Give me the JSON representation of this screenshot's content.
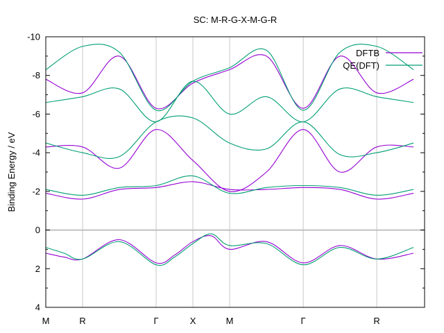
{
  "chart_data": {
    "type": "line",
    "title": "SC: M-R-G-X-M-G-R",
    "ylabel": "Binding Energy / eV",
    "xlabel": "",
    "xlim": [
      0,
      5.15
    ],
    "ylim": [
      4,
      -10
    ],
    "y_inverted": true,
    "grid": true,
    "x_ticks": [
      {
        "pos": 0,
        "label": "M"
      },
      {
        "pos": 0.5,
        "label": "R"
      },
      {
        "pos": 1.5,
        "label": "Γ"
      },
      {
        "pos": 2.0,
        "label": "X"
      },
      {
        "pos": 2.5,
        "label": "M"
      },
      {
        "pos": 3.5,
        "label": "Γ"
      },
      {
        "pos": 4.5,
        "label": "R"
      }
    ],
    "y_ticks": [
      -10,
      -8,
      -6,
      -4,
      -2,
      0,
      2,
      4
    ],
    "zero_line": 0,
    "legend_position": "top-right",
    "series": [
      {
        "name": "DFTB",
        "color": "#9400d3",
        "bands": [
          {
            "x": [
              0,
              0.25,
              0.5,
              1.0,
              1.5,
              1.75,
              2.0,
              2.25,
              2.5,
              3.0,
              3.5,
              4.0,
              4.5,
              5.0
            ],
            "y": [
              1.2,
              1.4,
              1.5,
              0.5,
              1.7,
              1.3,
              0.6,
              0.3,
              1.0,
              0.6,
              1.7,
              0.8,
              1.5,
              1.2
            ]
          },
          {
            "x": [
              0,
              0.5,
              1.0,
              1.5,
              2.0,
              2.5,
              3.0,
              3.5,
              4.0,
              4.5,
              5.0
            ],
            "y": [
              -1.9,
              -1.6,
              -2.1,
              -2.2,
              -2.5,
              -2.1,
              -2.1,
              -2.2,
              -2.1,
              -1.6,
              -1.9
            ]
          },
          {
            "x": [
              0,
              0.5,
              1.0,
              1.5,
              2.0,
              2.5,
              3.0,
              3.5,
              4.0,
              4.5,
              5.0
            ],
            "y": [
              -4.3,
              -4.3,
              -3.2,
              -5.2,
              -3.6,
              -2.0,
              -3.0,
              -5.2,
              -3.0,
              -4.3,
              -4.3
            ]
          },
          {
            "x": [
              0,
              0.5,
              1.0,
              1.5,
              2.0,
              2.5,
              3.0,
              3.5,
              4.0,
              4.5,
              5.0
            ],
            "y": [
              -7.8,
              -7.1,
              -9.0,
              -6.3,
              -7.6,
              -8.3,
              -9.0,
              -6.3,
              -9.0,
              -7.1,
              -7.8
            ]
          }
        ]
      },
      {
        "name": "QE(DFT)",
        "color": "#009e73",
        "bands": [
          {
            "x": [
              0,
              0.25,
              0.5,
              1.0,
              1.5,
              1.75,
              2.0,
              2.25,
              2.5,
              3.0,
              3.5,
              4.0,
              4.5,
              5.0
            ],
            "y": [
              0.9,
              1.2,
              1.5,
              0.6,
              1.8,
              1.4,
              0.7,
              0.2,
              0.8,
              0.7,
              1.8,
              0.9,
              1.5,
              0.9
            ]
          },
          {
            "x": [
              0,
              0.5,
              1.0,
              1.5,
              2.0,
              2.5,
              3.0,
              3.5,
              4.0,
              4.5,
              5.0
            ],
            "y": [
              -2.1,
              -1.8,
              -2.2,
              -2.3,
              -2.8,
              -1.9,
              -2.2,
              -2.3,
              -2.2,
              -1.8,
              -2.1
            ]
          },
          {
            "x": [
              0,
              0.5,
              1.0,
              1.5,
              2.0,
              2.5,
              3.0,
              3.5,
              4.0,
              4.5,
              5.0
            ],
            "y": [
              -4.5,
              -4.0,
              -3.8,
              -5.6,
              -5.8,
              -4.5,
              -4.2,
              -5.6,
              -3.9,
              -4.0,
              -4.5
            ]
          },
          {
            "x": [
              0,
              0.5,
              1.0,
              1.5,
              2.0,
              2.5,
              3.0,
              3.5,
              4.0,
              4.5,
              5.0
            ],
            "y": [
              -6.6,
              -6.9,
              -7.3,
              -5.6,
              -7.7,
              -6.0,
              -6.9,
              -5.6,
              -7.3,
              -6.9,
              -6.6
            ]
          },
          {
            "x": [
              0,
              0.5,
              1.0,
              1.5,
              2.0,
              2.5,
              3.0,
              3.5,
              4.0,
              4.5,
              5.0
            ],
            "y": [
              -8.3,
              -9.5,
              -9.2,
              -6.2,
              -7.7,
              -8.4,
              -9.3,
              -6.2,
              -9.2,
              -9.5,
              -8.3
            ]
          }
        ]
      }
    ]
  }
}
